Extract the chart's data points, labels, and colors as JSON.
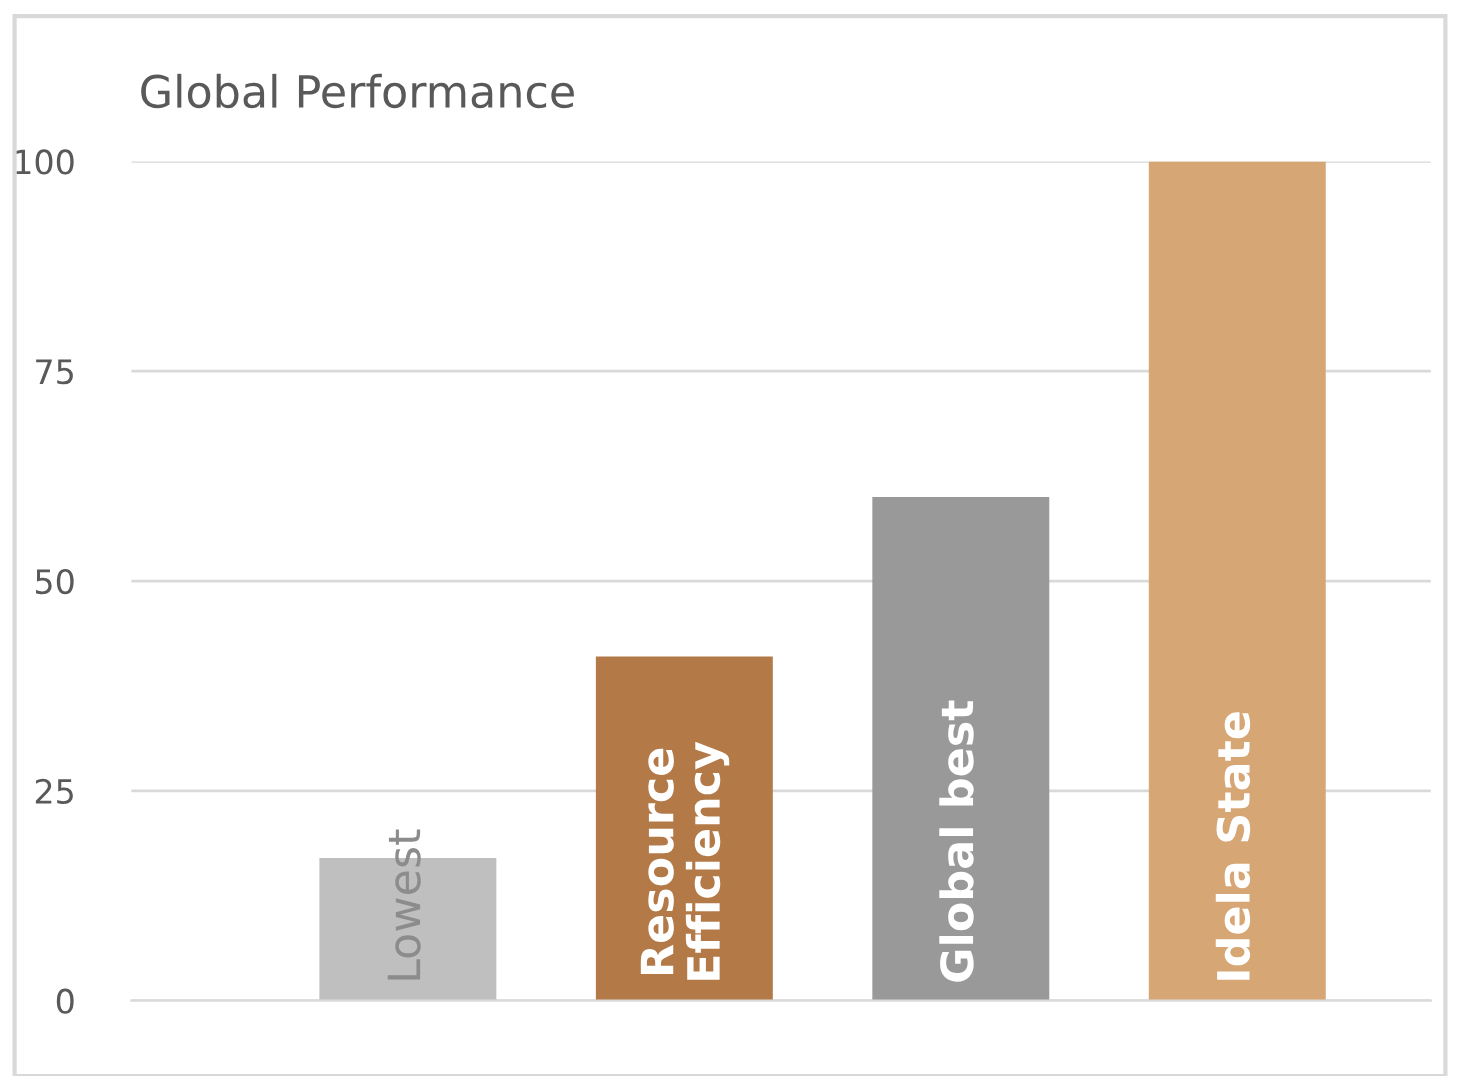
{
  "chart_data": {
    "type": "bar",
    "title": "Global Performance",
    "categories": [
      "Lowest",
      "Resource\nEfficiency",
      "Global best",
      "Idela State"
    ],
    "values": [
      17,
      41,
      60,
      100
    ],
    "colors": [
      "#bfbfbf",
      "#b37a48",
      "#999999",
      "#d6a674"
    ],
    "ylim": [
      0,
      100
    ],
    "yticks": [
      0,
      25,
      50,
      75,
      100
    ],
    "grid": "y",
    "legend": false
  }
}
